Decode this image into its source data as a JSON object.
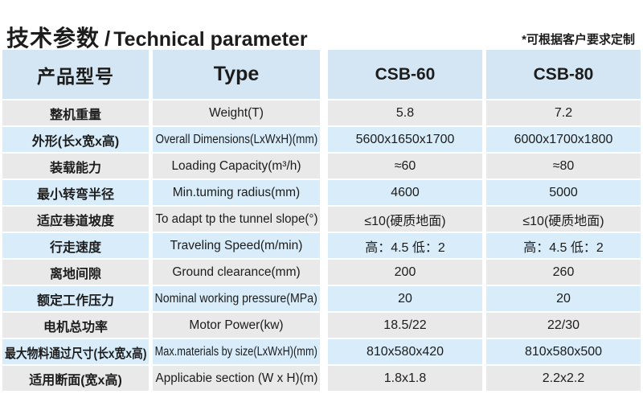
{
  "page": {
    "title_cn": "技术参数",
    "title_sep": "/",
    "title_en": "Technical parameter",
    "note": "*可根据客户要求定制"
  },
  "table": {
    "header": {
      "col_cn": "产品型号",
      "col_en": "Type",
      "model_1": "CSB-60",
      "model_2": "CSB-80"
    },
    "rows": [
      {
        "cn": "整机重量",
        "en": "Weight(T)",
        "v1": "5.8",
        "v2": "7.2"
      },
      {
        "cn": "外形(长x宽x高)",
        "en": "Overall Dimensions(LxWxH)(mm)",
        "v1": "5600x1650x1700",
        "v2": "6000x1700x1800"
      },
      {
        "cn": "装载能力",
        "en": "Loading Capacity(m³/h)",
        "v1": "≈60",
        "v2": "≈80"
      },
      {
        "cn": "最小转弯半径",
        "en": "Min.tuming radius(mm)",
        "v1": "4600",
        "v2": "5000"
      },
      {
        "cn": "适应巷道坡度",
        "en": "To adapt tp the tunnel slope(°)",
        "v1": "≤10(硬质地面)",
        "v2": "≤10(硬质地面)"
      },
      {
        "cn": "行走速度",
        "en": "Traveling Speed(m/min)",
        "v1": "高：4.5 低：2",
        "v2": "高：4.5 低：2"
      },
      {
        "cn": "离地间隙",
        "en": "Ground clearance(mm)",
        "v1": "200",
        "v2": "260"
      },
      {
        "cn": "额定工作压力",
        "en": "Nominal working pressure(MPa)",
        "v1": "20",
        "v2": "20"
      },
      {
        "cn": "电机总功率",
        "en": "Motor Power(kw)",
        "v1": "18.5/22",
        "v2": "22/30"
      },
      {
        "cn": "最大物料通过尺寸(长x宽x高)",
        "en": "Max.materials by size(LxWxH)(mm)",
        "v1": "810x580x420",
        "v2": "810x580x500"
      },
      {
        "cn": "适用断面(宽x高)",
        "en": "Applicabie section (W x H)(m)",
        "v1": "1.8x1.8",
        "v2": "2.2x2.2"
      }
    ]
  },
  "colors": {
    "header_bg": "#d4e6f3",
    "row_blue": "#d8ecf9",
    "row_gray": "#e9e9e9",
    "text": "#1c1c1c"
  }
}
